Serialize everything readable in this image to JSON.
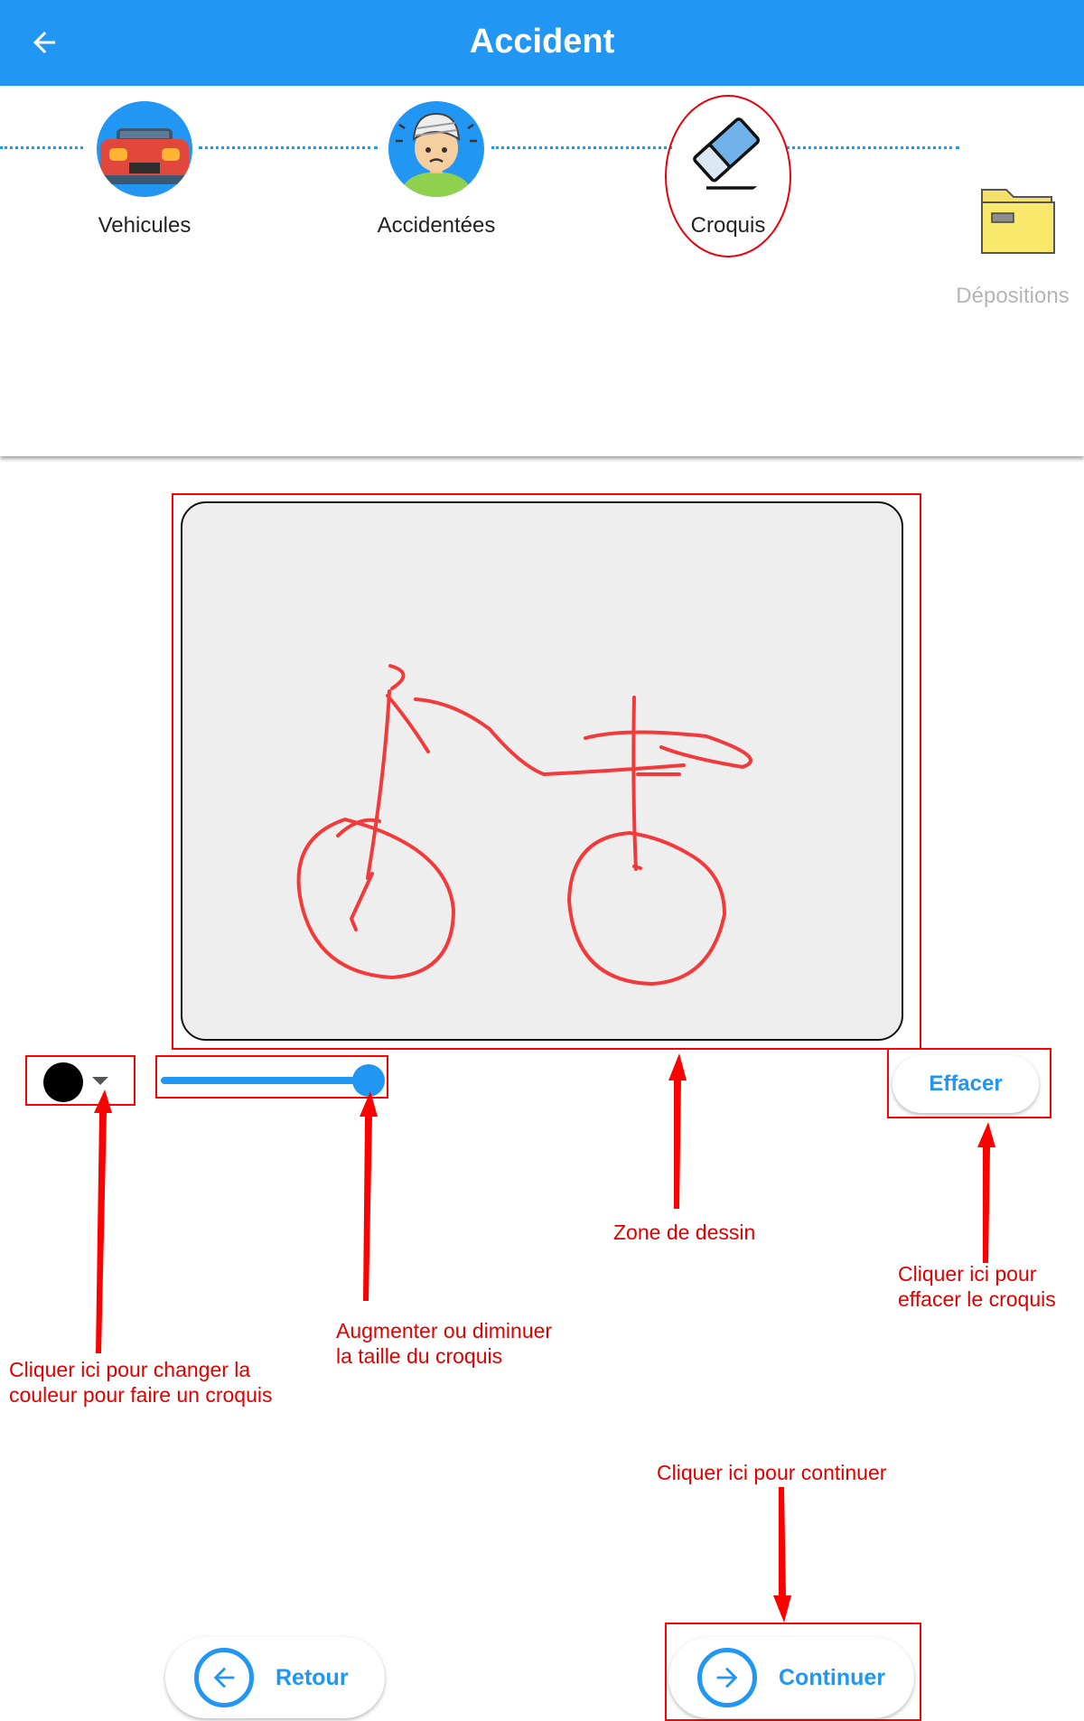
{
  "appbar": {
    "title": "Accident",
    "back_icon": "arrow-left-icon"
  },
  "stepper": {
    "steps": [
      {
        "label": "Vehicules",
        "icon": "car-front-icon",
        "active": true
      },
      {
        "label": "Accidentées",
        "icon": "injured-person-icon",
        "active": true
      },
      {
        "label": "Croquis",
        "icon": "eraser-icon",
        "active": true
      },
      {
        "label": "Dépositions",
        "icon": "folder-icon",
        "active": false
      }
    ]
  },
  "drawing": {
    "stroke_color": "#f23a3a",
    "canvas_background": "#efeeef"
  },
  "controls": {
    "pen_color": "#000000",
    "stroke_size_percent": 100,
    "clear_label": "Effacer"
  },
  "annotations": {
    "color_note": [
      "Cliquer ici pour changer la",
      "couleur pour faire un croquis"
    ],
    "size_note": [
      "Augmenter ou diminuer",
      "la taille du croquis"
    ],
    "zone_note": "Zone de dessin",
    "clear_note": [
      "Cliquer ici pour",
      "effacer le croquis"
    ],
    "continue_note": "Cliquer ici pour continuer"
  },
  "footer": {
    "back_label": "Retour",
    "continue_label": "Continuer"
  },
  "colors": {
    "primary": "#2196F3",
    "annotation": "#ff0000"
  }
}
